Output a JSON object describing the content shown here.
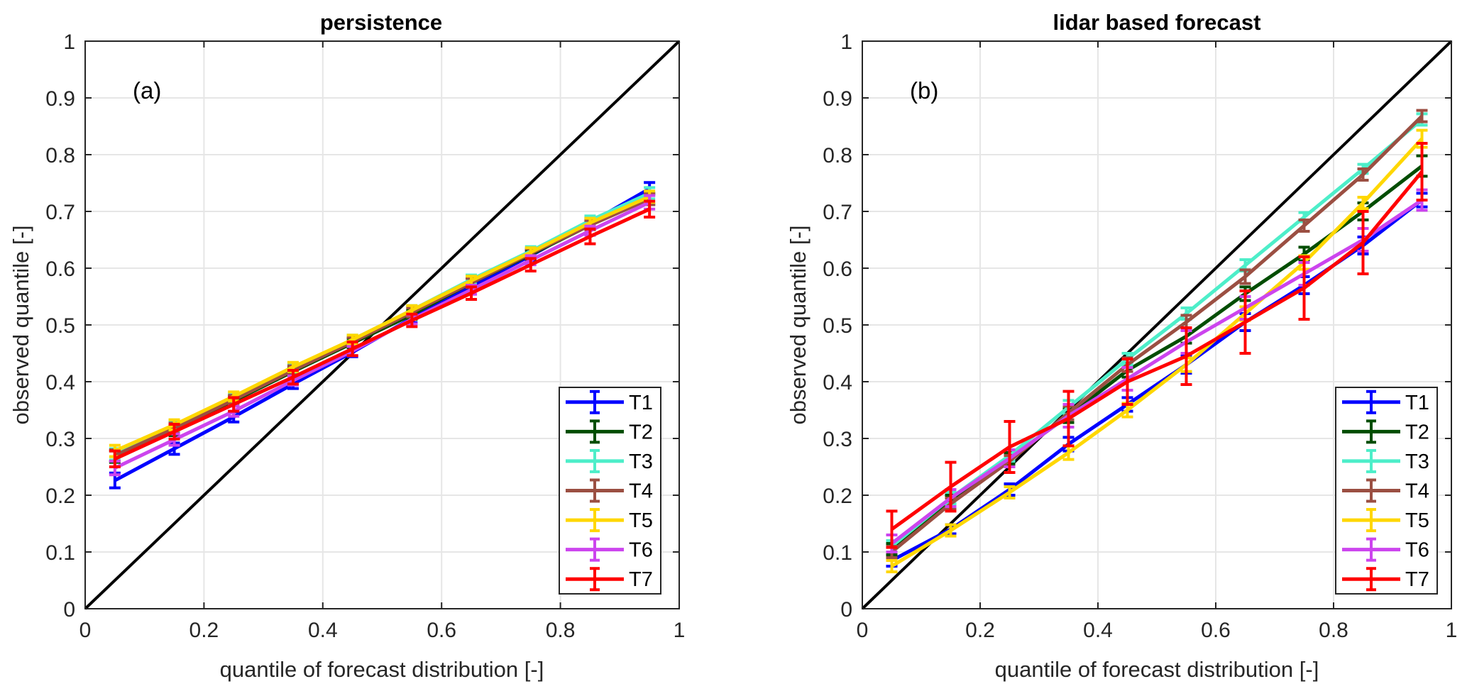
{
  "chart_data": [
    {
      "type": "line",
      "panel_label": "(a)",
      "title": "persistence",
      "xlabel": "quantile of forecast distribution [-]",
      "ylabel": "observed quantile [-]",
      "xlim": [
        0,
        1
      ],
      "ylim": [
        0,
        1
      ],
      "xticks": [
        "0",
        "0.2",
        "0.4",
        "0.6",
        "0.8",
        "1"
      ],
      "yticks": [
        "0",
        "0.1",
        "0.2",
        "0.3",
        "0.4",
        "0.5",
        "0.6",
        "0.7",
        "0.8",
        "0.9",
        "1"
      ],
      "grid": true,
      "legend_position": "bottom-right",
      "reference_line": {
        "name": "diagonal",
        "x": [
          0,
          1
        ],
        "y": [
          0,
          1
        ],
        "color": "#000000"
      },
      "x": [
        0.05,
        0.15,
        0.25,
        0.35,
        0.45,
        0.55,
        0.65,
        0.75,
        0.85,
        0.95
      ],
      "series": [
        {
          "name": "T1",
          "color": "#0000FF",
          "values": [
            0.226,
            0.282,
            0.338,
            0.396,
            0.452,
            0.512,
            0.568,
            0.622,
            0.68,
            0.74
          ],
          "errors": [
            0.013,
            0.01,
            0.009,
            0.008,
            0.008,
            0.008,
            0.008,
            0.008,
            0.008,
            0.011
          ]
        },
        {
          "name": "T2",
          "color": "#004D00",
          "values": [
            0.268,
            0.314,
            0.366,
            0.418,
            0.468,
            0.518,
            0.574,
            0.624,
            0.676,
            0.722
          ],
          "errors": [
            0.01,
            0.009,
            0.008,
            0.008,
            0.008,
            0.008,
            0.008,
            0.008,
            0.008,
            0.01
          ]
        },
        {
          "name": "T3",
          "color": "#4DEEC9",
          "values": [
            0.272,
            0.322,
            0.372,
            0.424,
            0.474,
            0.526,
            0.58,
            0.63,
            0.684,
            0.732
          ],
          "errors": [
            0.01,
            0.009,
            0.008,
            0.008,
            0.008,
            0.008,
            0.008,
            0.008,
            0.008,
            0.01
          ]
        },
        {
          "name": "T4",
          "color": "#9B4F42",
          "values": [
            0.27,
            0.318,
            0.368,
            0.42,
            0.47,
            0.522,
            0.574,
            0.626,
            0.676,
            0.722
          ],
          "errors": [
            0.01,
            0.009,
            0.008,
            0.008,
            0.008,
            0.008,
            0.008,
            0.008,
            0.008,
            0.01
          ]
        },
        {
          "name": "T5",
          "color": "#FFD700",
          "values": [
            0.278,
            0.324,
            0.374,
            0.426,
            0.474,
            0.526,
            0.578,
            0.628,
            0.68,
            0.726
          ],
          "errors": [
            0.01,
            0.009,
            0.008,
            0.008,
            0.008,
            0.008,
            0.008,
            0.008,
            0.008,
            0.01
          ]
        },
        {
          "name": "T6",
          "color": "#CC44EE",
          "values": [
            0.248,
            0.298,
            0.348,
            0.402,
            0.454,
            0.51,
            0.562,
            0.614,
            0.666,
            0.716
          ],
          "errors": [
            0.012,
            0.01,
            0.009,
            0.008,
            0.008,
            0.008,
            0.008,
            0.008,
            0.008,
            0.012
          ]
        },
        {
          "name": "T7",
          "color": "#FF0000",
          "values": [
            0.264,
            0.312,
            0.36,
            0.408,
            0.458,
            0.508,
            0.556,
            0.606,
            0.656,
            0.704
          ],
          "errors": [
            0.014,
            0.013,
            0.012,
            0.012,
            0.012,
            0.011,
            0.011,
            0.011,
            0.013,
            0.014
          ]
        }
      ]
    },
    {
      "type": "line",
      "panel_label": "(b)",
      "title": "lidar based forecast",
      "xlabel": "quantile of forecast distribution [-]",
      "ylabel": "observed quantile [-]",
      "xlim": [
        0,
        1
      ],
      "ylim": [
        0,
        1
      ],
      "xticks": [
        "0",
        "0.2",
        "0.4",
        "0.6",
        "0.8",
        "1"
      ],
      "yticks": [
        "0",
        "0.1",
        "0.2",
        "0.3",
        "0.4",
        "0.5",
        "0.6",
        "0.7",
        "0.8",
        "0.9",
        "1"
      ],
      "grid": true,
      "legend_position": "bottom-right",
      "reference_line": {
        "name": "diagonal",
        "x": [
          0,
          1
        ],
        "y": [
          0,
          1
        ],
        "color": "#000000"
      },
      "x": [
        0.05,
        0.15,
        0.25,
        0.35,
        0.45,
        0.55,
        0.65,
        0.75,
        0.85,
        0.95
      ],
      "series": [
        {
          "name": "T1",
          "color": "#0000FF",
          "values": [
            0.085,
            0.14,
            0.21,
            0.29,
            0.36,
            0.43,
            0.505,
            0.57,
            0.64,
            0.72
          ],
          "errors": [
            0.01,
            0.008,
            0.01,
            0.012,
            0.012,
            0.015,
            0.015,
            0.015,
            0.015,
            0.012
          ]
        },
        {
          "name": "T2",
          "color": "#004D00",
          "values": [
            0.105,
            0.19,
            0.265,
            0.34,
            0.42,
            0.48,
            0.555,
            0.625,
            0.7,
            0.78
          ],
          "errors": [
            0.01,
            0.01,
            0.01,
            0.012,
            0.012,
            0.012,
            0.012,
            0.012,
            0.015,
            0.018
          ]
        },
        {
          "name": "T3",
          "color": "#4DEEC9",
          "values": [
            0.11,
            0.195,
            0.27,
            0.355,
            0.44,
            0.52,
            0.605,
            0.69,
            0.775,
            0.862
          ],
          "errors": [
            0.01,
            0.01,
            0.01,
            0.012,
            0.01,
            0.01,
            0.01,
            0.008,
            0.008,
            0.01
          ]
        },
        {
          "name": "T4",
          "color": "#9B4F42",
          "values": [
            0.1,
            0.185,
            0.26,
            0.345,
            0.43,
            0.505,
            0.585,
            0.675,
            0.765,
            0.868
          ],
          "errors": [
            0.01,
            0.01,
            0.01,
            0.012,
            0.012,
            0.012,
            0.012,
            0.01,
            0.01,
            0.01
          ]
        },
        {
          "name": "T5",
          "color": "#FFD700",
          "values": [
            0.075,
            0.138,
            0.205,
            0.275,
            0.35,
            0.43,
            0.52,
            0.61,
            0.715,
            0.828
          ],
          "errors": [
            0.01,
            0.01,
            0.01,
            0.012,
            0.012,
            0.012,
            0.012,
            0.012,
            0.01,
            0.015
          ]
        },
        {
          "name": "T6",
          "color": "#CC44EE",
          "values": [
            0.115,
            0.195,
            0.265,
            0.34,
            0.405,
            0.47,
            0.53,
            0.59,
            0.65,
            0.72
          ],
          "errors": [
            0.015,
            0.015,
            0.015,
            0.02,
            0.02,
            0.02,
            0.02,
            0.02,
            0.02,
            0.018
          ]
        },
        {
          "name": "T7",
          "color": "#FF0000",
          "values": [
            0.14,
            0.215,
            0.285,
            0.335,
            0.4,
            0.445,
            0.505,
            0.565,
            0.645,
            0.77
          ],
          "errors": [
            0.032,
            0.043,
            0.045,
            0.048,
            0.04,
            0.05,
            0.055,
            0.055,
            0.055,
            0.05
          ]
        }
      ]
    }
  ]
}
